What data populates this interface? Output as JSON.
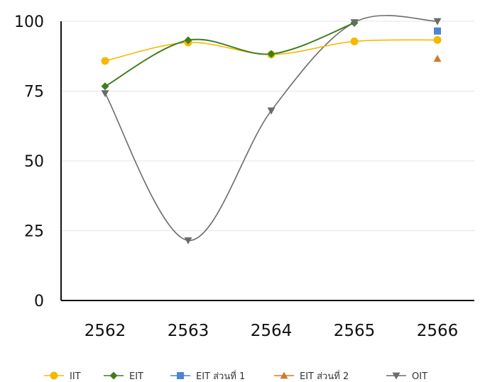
{
  "chart_data": {
    "type": "line",
    "title": "",
    "xlabel": "",
    "ylabel": "",
    "categories": [
      "2562",
      "2563",
      "2564",
      "2565",
      "2566"
    ],
    "yticks": [
      "0",
      "25",
      "50",
      "75",
      "100"
    ],
    "ylim": [
      0,
      100
    ],
    "grid": true,
    "legend_position": "bottom",
    "series": [
      {
        "name": "IIT",
        "color": "#f5b800",
        "marker": "circle",
        "smooth": true,
        "values": [
          85.8,
          92.4,
          88.1,
          92.8,
          93.3
        ]
      },
      {
        "name": "EIT",
        "color": "#3f7d1f",
        "marker": "diamond",
        "smooth": true,
        "values": [
          76.7,
          93.2,
          88.3,
          99.4,
          null
        ]
      },
      {
        "name": "EIT ส่วนที่ 1",
        "color": "#4b86d0",
        "marker": "square",
        "smooth": false,
        "values": [
          null,
          null,
          null,
          null,
          96.5
        ]
      },
      {
        "name": "EIT ส่วนที่ 2",
        "color": "#d07a2e",
        "marker": "triangle-up",
        "smooth": false,
        "values": [
          null,
          null,
          null,
          null,
          86.6
        ]
      },
      {
        "name": "OIT",
        "color": "#6b6b6b",
        "marker": "triangle-down",
        "smooth": true,
        "values": [
          74.2,
          21.5,
          68.0,
          99.6,
          100
        ]
      }
    ]
  }
}
